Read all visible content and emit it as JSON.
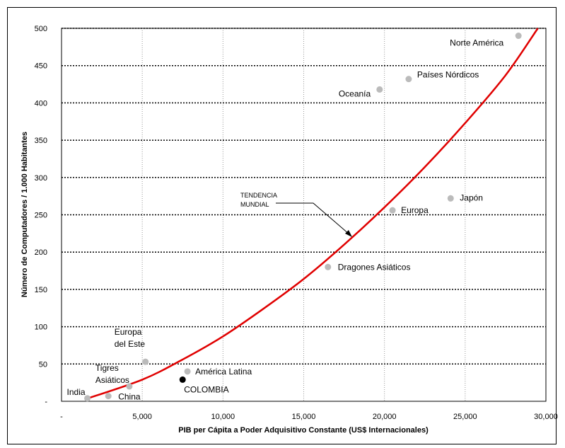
{
  "chart_data": {
    "type": "scatter",
    "title": "",
    "xlabel": "PIB per Cápita a Poder Adquisitivo Constante (US$ Internacionales)",
    "ylabel": "Número de Computadores / 1.000 Habitantes",
    "xlim": [
      0,
      30000
    ],
    "ylim": [
      0,
      500
    ],
    "x_ticks": [
      0,
      5000,
      10000,
      15000,
      20000,
      25000,
      30000
    ],
    "x_tick_labels": [
      "-",
      "5,000",
      "10,000",
      "15,000",
      "20,000",
      "25,000",
      "30,000"
    ],
    "y_ticks": [
      0,
      50,
      100,
      150,
      200,
      250,
      300,
      350,
      400,
      450,
      500
    ],
    "y_tick_labels": [
      "-",
      "50",
      "100",
      "150",
      "200",
      "250",
      "300",
      "350",
      "400",
      "450",
      "500"
    ],
    "grid": {
      "x": "vertical-dotted",
      "y": "horizontal-dotted"
    },
    "points": [
      {
        "label": "India",
        "x": 1600,
        "y": 4,
        "color": "#bbbbbb"
      },
      {
        "label": "China",
        "x": 2900,
        "y": 7,
        "color": "#bbbbbb"
      },
      {
        "label": "Tigres Asiáticos",
        "x": 4200,
        "y": 20,
        "color": "#bbbbbb"
      },
      {
        "label": "Europa del Este",
        "x": 5200,
        "y": 53,
        "color": "#bbbbbb"
      },
      {
        "label": "América Latina",
        "x": 7800,
        "y": 40,
        "color": "#bbbbbb"
      },
      {
        "label": "COLOMBIA",
        "x": 7500,
        "y": 29,
        "color": "#000000"
      },
      {
        "label": "Dragones Asiáticos",
        "x": 16500,
        "y": 180,
        "color": "#bbbbbb"
      },
      {
        "label": "Europa",
        "x": 20500,
        "y": 256,
        "color": "#bbbbbb"
      },
      {
        "label": "Japón",
        "x": 24100,
        "y": 272,
        "color": "#bbbbbb"
      },
      {
        "label": "Oceanía",
        "x": 19700,
        "y": 418,
        "color": "#bbbbbb"
      },
      {
        "label": "Países Nórdicos",
        "x": 21500,
        "y": 432,
        "color": "#bbbbbb"
      },
      {
        "label": "Norte América",
        "x": 28300,
        "y": 490,
        "color": "#bbbbbb"
      }
    ],
    "trend": {
      "label": "TENDENCIA MUNDIAL",
      "color": "#e00000",
      "x": [
        1500,
        5000,
        7500,
        10000,
        12500,
        15000,
        17500,
        20000,
        22500,
        25000,
        27500,
        29500
      ],
      "y": [
        3,
        29,
        56,
        87,
        124,
        164,
        210,
        260,
        314,
        373,
        437,
        500
      ]
    }
  }
}
